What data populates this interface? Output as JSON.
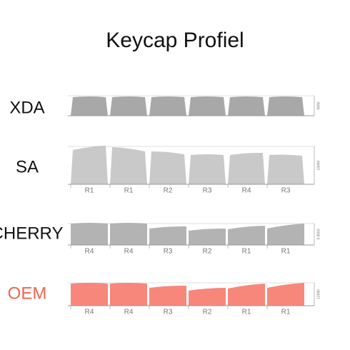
{
  "title": "Keycap Profiel",
  "profiles": [
    {
      "name": "XDA",
      "height": "9MM",
      "rows": []
    },
    {
      "name": "SA",
      "height": "16MM",
      "rows": [
        "R1",
        "R1",
        "R2",
        "R3",
        "R4",
        "R3"
      ]
    },
    {
      "name": "CHERRY",
      "height": "9.8MM",
      "rows": [
        "R4",
        "R4",
        "R3",
        "R2",
        "R1",
        "R1"
      ]
    },
    {
      "name": "OEM",
      "height": "12MM",
      "rows": [
        "R4",
        "R4",
        "R3",
        "R2",
        "R1",
        "R1"
      ]
    }
  ]
}
